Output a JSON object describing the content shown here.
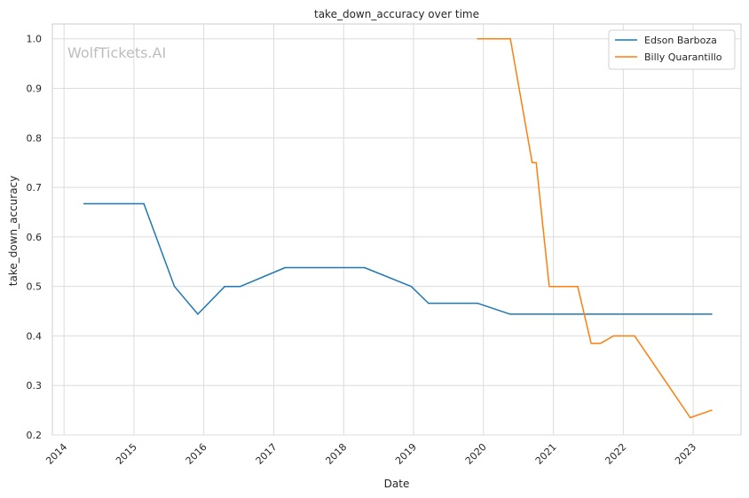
{
  "chart_data": {
    "type": "line",
    "title": "take_down_accuracy over time",
    "xlabel": "Date",
    "ylabel": "take_down_accuracy",
    "watermark": "WolfTickets.AI",
    "x_ticks": [
      "2014",
      "2015",
      "2016",
      "2017",
      "2018",
      "2019",
      "2020",
      "2021",
      "2022",
      "2023"
    ],
    "y_ticks": [
      "0.2",
      "0.3",
      "0.4",
      "0.5",
      "0.6",
      "0.7",
      "0.8",
      "0.9",
      "1.0"
    ],
    "xlim": [
      "2013-11-01",
      "2023-09-08"
    ],
    "ylim": [
      0.2,
      1.03
    ],
    "grid": true,
    "legend_position": "top-right",
    "series": [
      {
        "name": "Edson Barboza",
        "color": "#1f77b4",
        "x": [
          "2014-04-15",
          "2015-02-22",
          "2015-08-01",
          "2015-12-01",
          "2016-04-20",
          "2016-07-10",
          "2017-03-01",
          "2018-04-20",
          "2018-12-20",
          "2019-03-20",
          "2019-12-01",
          "2020-05-20",
          "2023-04-08"
        ],
        "y": [
          0.667,
          0.667,
          0.5,
          0.444,
          0.5,
          0.5,
          0.538,
          0.538,
          0.5,
          0.466,
          0.466,
          0.444,
          0.444
        ]
      },
      {
        "name": "Billy Quarantillo",
        "color": "#ff7f0e",
        "x": [
          "2019-12-01",
          "2020-05-21",
          "2020-09-12",
          "2020-10-03",
          "2020-12-10",
          "2021-05-08",
          "2021-07-17",
          "2021-09-04",
          "2021-11-11",
          "2022-03-01",
          "2022-12-17",
          "2023-04-08"
        ],
        "y": [
          1.0,
          1.0,
          0.75,
          0.75,
          0.5,
          0.5,
          0.385,
          0.385,
          0.4,
          0.4,
          0.235,
          0.25
        ]
      }
    ]
  }
}
